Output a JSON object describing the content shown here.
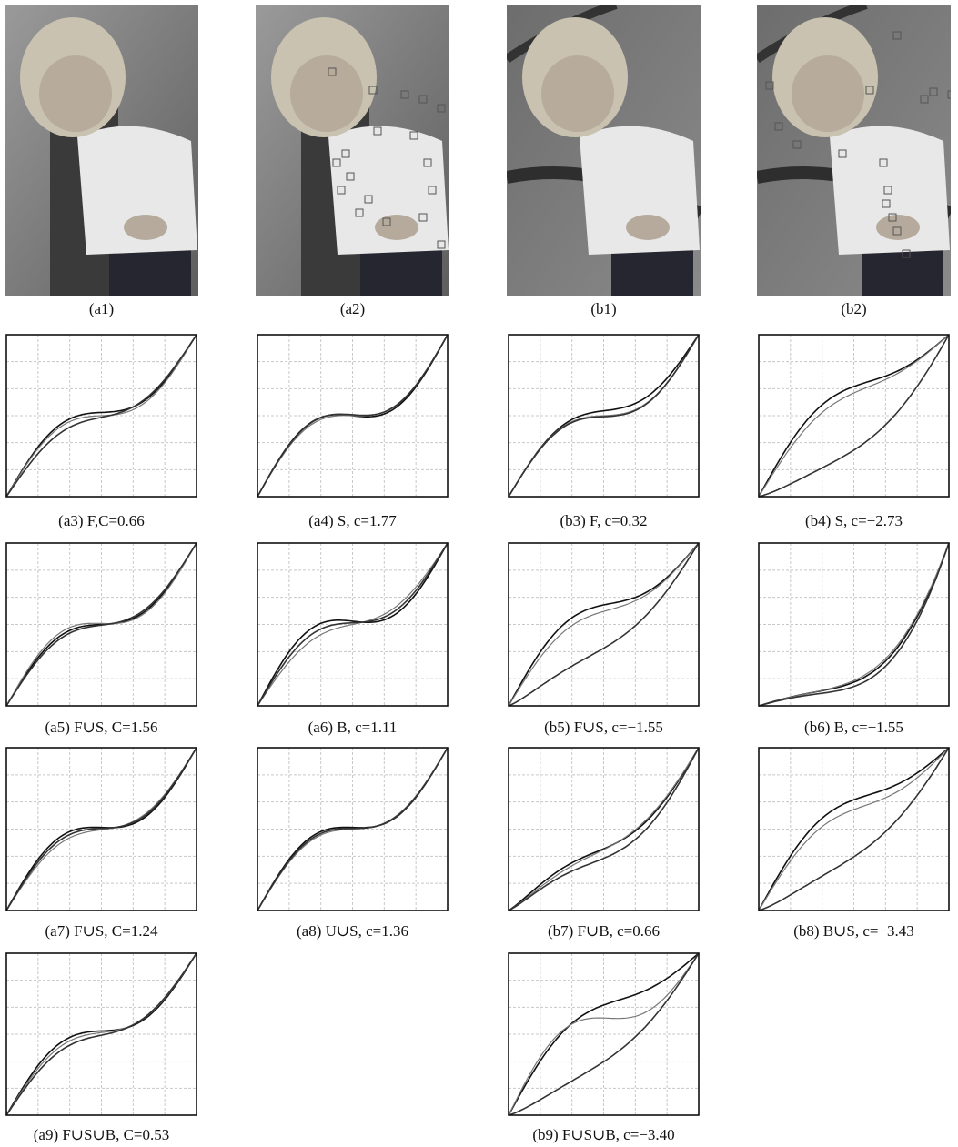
{
  "figure": {
    "panels": [
      {
        "caption": "(a1)"
      },
      {
        "caption": "(a2)"
      },
      {
        "caption": "(b1)"
      },
      {
        "caption": "(b2)"
      },
      {
        "caption": "(a3) F,C=0.66"
      },
      {
        "caption": "(a4) S, c=1.77"
      },
      {
        "caption": "(b3) F, c=0.32"
      },
      {
        "caption": "(b4) S, c=−2.73"
      },
      {
        "caption": "(a5) F∪S, C=1.56"
      },
      {
        "caption": "(a6) B, c=1.11"
      },
      {
        "caption": "(b5) F∪S, c=−1.55"
      },
      {
        "caption": "(b6) B, c=−1.55"
      },
      {
        "caption": "(a7) F∪S, C=1.24"
      },
      {
        "caption": "(a8) U∪S, c=1.36"
      },
      {
        "caption": "(b7) F∪B, c=0.66"
      },
      {
        "caption": "(b8) B∪S, c=−3.43"
      },
      {
        "caption": "(a9) F∪S∪B, C=0.53"
      },
      {
        "caption": "(b9) F∪S∪B, c=−3.40"
      }
    ]
  }
}
